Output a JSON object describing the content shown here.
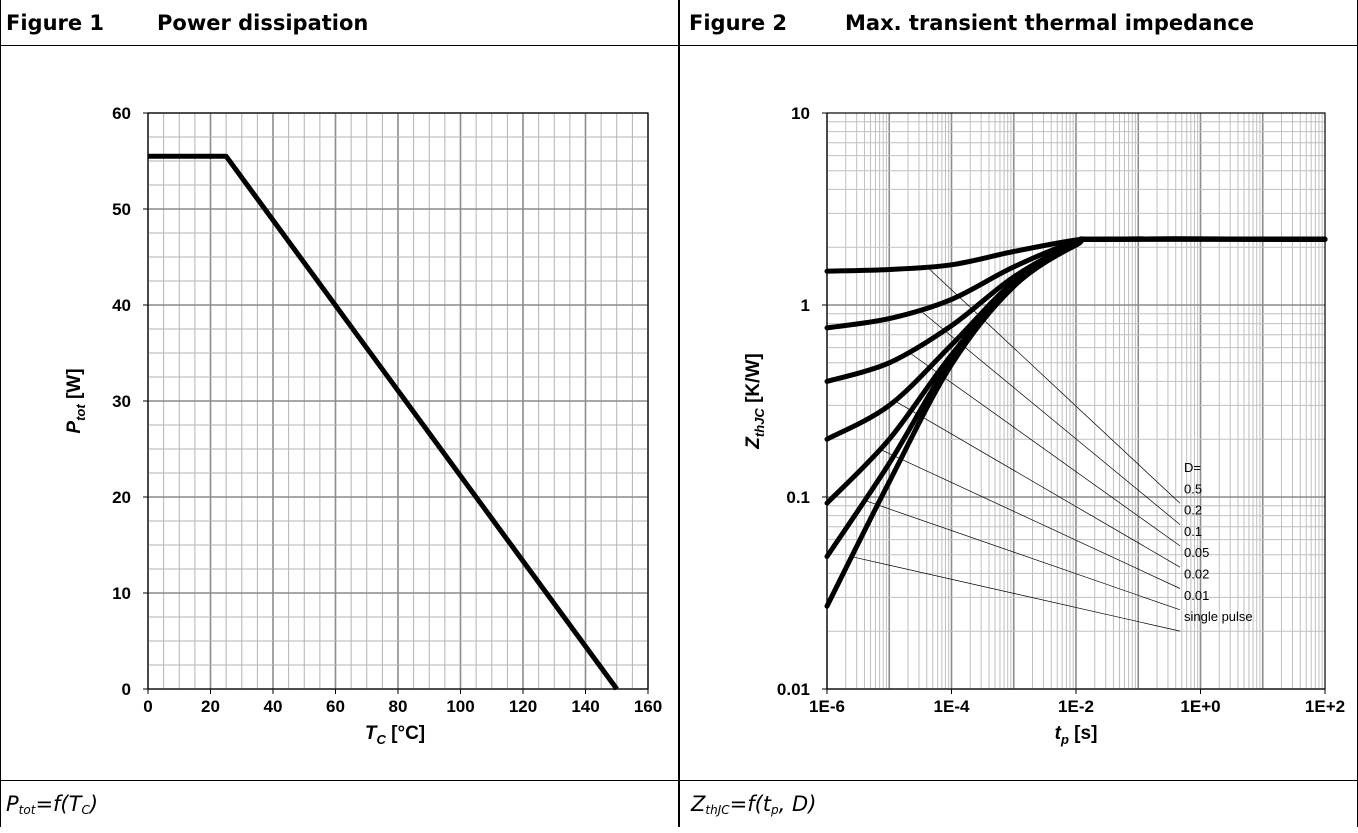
{
  "figure1": {
    "number": "Figure 1",
    "title": "Power dissipation",
    "caption": {
      "main": "P",
      "sub": "tot",
      "mid": "=f(T",
      "sub2": "C",
      "end": ")"
    },
    "ylabel": {
      "main": "P",
      "sub": "tot",
      "unit": " [W]"
    },
    "xlabel": {
      "main": "T",
      "sub": "C",
      "unit": " [°C]"
    }
  },
  "figure2": {
    "number": "Figure 2",
    "title": "Max. transient thermal impedance",
    "caption": {
      "main": "Z",
      "sub": "thJC",
      "mid": "=f(t",
      "sub2": "p",
      "end": ", D)"
    },
    "ylabel": {
      "main": "Z",
      "sub": "thJC",
      "unit": " [K/W]"
    },
    "xlabel": {
      "main": "t",
      "sub": "p",
      "unit": " [s]"
    }
  },
  "chart_data": [
    {
      "type": "line",
      "title": "Power dissipation",
      "xlabel": "T_C [°C]",
      "ylabel": "P_tot [W]",
      "xlim": [
        0,
        160
      ],
      "ylim": [
        0,
        60
      ],
      "xticks": [
        0,
        20,
        40,
        60,
        80,
        100,
        120,
        140,
        160
      ],
      "xtick_labels": [
        "0",
        "20",
        "40",
        "60",
        "80",
        "100",
        "120",
        "140",
        "160"
      ],
      "yticks": [
        0,
        10,
        20,
        30,
        40,
        50,
        60
      ],
      "ytick_labels": [
        "0",
        "10",
        "20",
        "30",
        "40",
        "50",
        "60"
      ],
      "grid": true,
      "series": [
        {
          "x": [
            0,
            25,
            150
          ],
          "y": [
            55.5,
            55.5,
            0
          ]
        }
      ]
    },
    {
      "type": "line",
      "title": "Max. transient thermal impedance",
      "xlabel": "t_p [s]",
      "ylabel": "Z_thJC [K/W]",
      "xscale": "log",
      "yscale": "log",
      "xlim": [
        1e-06,
        100
      ],
      "ylim": [
        0.01,
        10
      ],
      "xticks": [
        1e-06,
        0.0001,
        0.01,
        1,
        100
      ],
      "xtick_labels": [
        "1E-6",
        "1E-4",
        "1E-2",
        "1E+0",
        "1E+2"
      ],
      "yticks": [
        0.01,
        0.1,
        1,
        10
      ],
      "ytick_labels": [
        "0.01",
        "0.1",
        "1",
        "10"
      ],
      "grid": true,
      "legend_title": "D=",
      "legend_placement": "right, inside plot",
      "series": [
        {
          "name": "0.5",
          "x": [
            1e-06,
            1e-05,
            0.0001,
            0.001,
            0.01,
            0.03,
            100
          ],
          "y": [
            1.5,
            1.53,
            1.62,
            1.9,
            2.18,
            2.2,
            2.2
          ]
        },
        {
          "name": "0.2",
          "x": [
            1e-06,
            1e-05,
            0.0001,
            0.001,
            0.01,
            0.03,
            100
          ],
          "y": [
            0.76,
            0.85,
            1.07,
            1.58,
            2.14,
            2.2,
            2.2
          ]
        },
        {
          "name": "0.1",
          "x": [
            1e-06,
            1e-05,
            0.0001,
            0.001,
            0.01,
            0.03,
            100
          ],
          "y": [
            0.4,
            0.5,
            0.78,
            1.4,
            2.1,
            2.2,
            2.2
          ]
        },
        {
          "name": "0.05",
          "x": [
            1e-06,
            1e-05,
            0.0001,
            0.001,
            0.01,
            0.03,
            100
          ],
          "y": [
            0.2,
            0.3,
            0.62,
            1.32,
            2.08,
            2.2,
            2.2
          ]
        },
        {
          "name": "0.02",
          "x": [
            1e-06,
            1e-05,
            0.0001,
            0.001,
            0.01,
            0.03,
            100
          ],
          "y": [
            0.093,
            0.2,
            0.55,
            1.28,
            2.07,
            2.2,
            2.2
          ]
        },
        {
          "name": "0.01",
          "x": [
            1e-06,
            1e-05,
            0.0001,
            0.001,
            0.01,
            0.03,
            100
          ],
          "y": [
            0.049,
            0.15,
            0.52,
            1.26,
            2.06,
            2.2,
            2.2
          ]
        },
        {
          "name": "single pulse",
          "x": [
            1e-06,
            1e-05,
            0.0001,
            0.001,
            0.01,
            0.03,
            100
          ],
          "y": [
            0.027,
            0.12,
            0.49,
            1.25,
            2.05,
            2.2,
            2.2
          ]
        }
      ]
    }
  ]
}
